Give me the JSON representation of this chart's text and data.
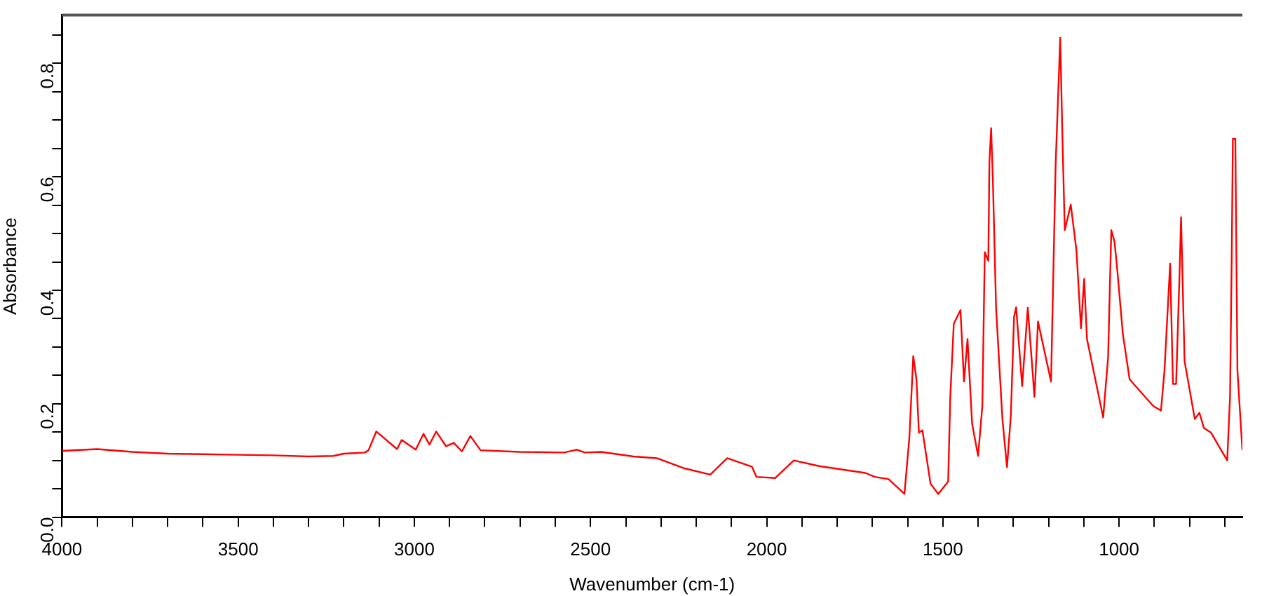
{
  "chart_data": {
    "type": "line",
    "xlabel": "Wavenumber (cm-1)",
    "ylabel": "Absorbance",
    "xlim": [
      4000,
      650
    ],
    "ylim": [
      0,
      0.885
    ],
    "xticks": [
      4000,
      {
        "value": 3900,
        "label": null
      },
      {
        "value": 3800,
        "label": null
      },
      {
        "value": 3700,
        "label": null
      },
      {
        "value": 3600,
        "label": null
      },
      3500,
      {
        "value": 3400,
        "label": null
      },
      {
        "value": 3300,
        "label": null
      },
      {
        "value": 3200,
        "label": null
      },
      {
        "value": 3100,
        "label": null
      },
      3000,
      {
        "value": 2900,
        "label": null
      },
      {
        "value": 2800,
        "label": null
      },
      {
        "value": 2700,
        "label": null
      },
      {
        "value": 2600,
        "label": null
      },
      2500,
      {
        "value": 2400,
        "label": null
      },
      {
        "value": 2300,
        "label": null
      },
      {
        "value": 2200,
        "label": null
      },
      {
        "value": 2100,
        "label": null
      },
      2000,
      {
        "value": 1900,
        "label": null
      },
      {
        "value": 1800,
        "label": null
      },
      {
        "value": 1700,
        "label": null
      },
      {
        "value": 1600,
        "label": null
      },
      1500,
      {
        "value": 1400,
        "label": null
      },
      {
        "value": 1300,
        "label": null
      },
      {
        "value": 1200,
        "label": null
      },
      {
        "value": 1100,
        "label": null
      },
      1000,
      {
        "value": 900,
        "label": null
      },
      {
        "value": 800,
        "label": null
      },
      {
        "value": 700,
        "label": null
      }
    ],
    "yticks": [
      {
        "value": 0,
        "label": "0.0"
      },
      {
        "value": 0.05,
        "label": null
      },
      {
        "value": 0.1,
        "label": null
      },
      {
        "value": 0.15,
        "label": null
      },
      0.2,
      {
        "value": 0.25,
        "label": null
      },
      {
        "value": 0.3,
        "label": null
      },
      {
        "value": 0.35,
        "label": null
      },
      0.4,
      {
        "value": 0.45,
        "label": null
      },
      {
        "value": 0.5,
        "label": null
      },
      {
        "value": 0.55,
        "label": null
      },
      0.6,
      {
        "value": 0.65,
        "label": null
      },
      {
        "value": 0.7,
        "label": null
      },
      {
        "value": 0.75,
        "label": null
      },
      0.8,
      {
        "value": 0.85,
        "label": null
      }
    ],
    "grid": false,
    "legend": false,
    "marker": "none",
    "line_style": "solid",
    "series": [
      {
        "color": "#ff0000",
        "x": [
          4000,
          3900,
          3800,
          3700,
          3600,
          3500,
          3400,
          3300,
          3230,
          3200,
          3140,
          3130,
          3108,
          3049,
          3036,
          2996,
          2974,
          2957,
          2938,
          2910,
          2888,
          2865,
          2841,
          2812,
          2700,
          2575,
          2539,
          2516,
          2470,
          2378,
          2312,
          2233,
          2160,
          2112,
          2042,
          2029,
          1976,
          1923,
          1851,
          1720,
          1693,
          1654,
          1609,
          1595,
          1584,
          1575,
          1568,
          1558,
          1535,
          1513,
          1485,
          1479,
          1469,
          1450,
          1440,
          1430,
          1417,
          1400,
          1388,
          1381,
          1371,
          1368,
          1363,
          1358,
          1349,
          1331,
          1318,
          1307,
          1298,
          1292,
          1275,
          1259,
          1240,
          1230,
          1193,
          1180,
          1167,
          1160,
          1154,
          1137,
          1121,
          1108,
          1099,
          1091,
          1045,
          1031,
          1022,
          1013,
          1006,
          989,
          970,
          903,
          881,
          871,
          855,
          847,
          838,
          828,
          824,
          814,
          785,
          772,
          759,
          739,
          693,
          685,
          680,
          677,
          670,
          664,
          650
        ],
        "values": [
          0.117,
          0.12,
          0.115,
          0.112,
          0.111,
          0.11,
          0.109,
          0.107,
          0.108,
          0.112,
          0.114,
          0.118,
          0.151,
          0.12,
          0.136,
          0.119,
          0.147,
          0.128,
          0.151,
          0.125,
          0.131,
          0.116,
          0.143,
          0.118,
          0.115,
          0.114,
          0.119,
          0.114,
          0.115,
          0.107,
          0.104,
          0.086,
          0.075,
          0.104,
          0.089,
          0.071,
          0.069,
          0.1,
          0.09,
          0.078,
          0.071,
          0.067,
          0.041,
          0.141,
          0.284,
          0.243,
          0.149,
          0.153,
          0.059,
          0.041,
          0.063,
          0.212,
          0.341,
          0.365,
          0.239,
          0.314,
          0.165,
          0.108,
          0.196,
          0.467,
          0.452,
          0.624,
          0.686,
          0.593,
          0.369,
          0.173,
          0.088,
          0.18,
          0.353,
          0.37,
          0.231,
          0.369,
          0.212,
          0.345,
          0.239,
          0.62,
          0.845,
          0.652,
          0.506,
          0.551,
          0.471,
          0.333,
          0.42,
          0.314,
          0.176,
          0.282,
          0.506,
          0.486,
          0.443,
          0.322,
          0.243,
          0.196,
          0.188,
          0.259,
          0.447,
          0.235,
          0.235,
          0.435,
          0.529,
          0.275,
          0.173,
          0.184,
          0.157,
          0.149,
          0.1,
          0.212,
          0.471,
          0.667,
          0.667,
          0.259,
          0.118
        ]
      }
    ]
  }
}
